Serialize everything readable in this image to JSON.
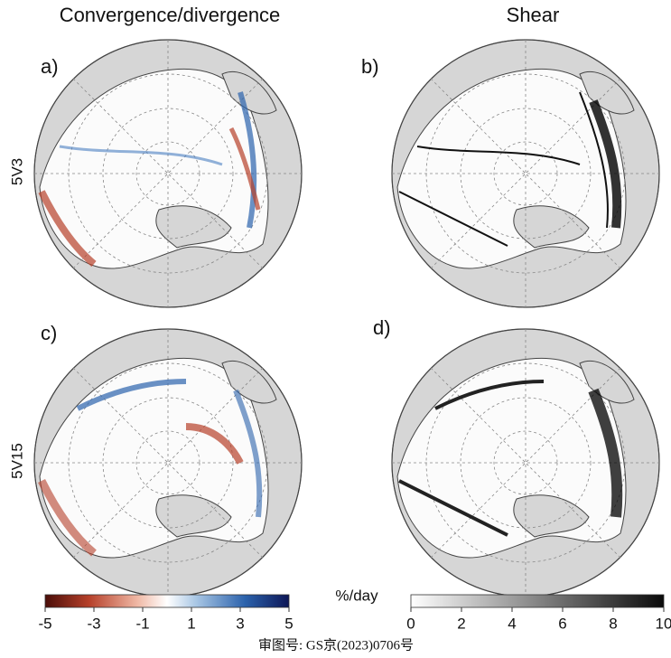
{
  "columns": [
    "Convergence/divergence",
    "Shear"
  ],
  "rows": [
    "5V3",
    "5V15"
  ],
  "panels": [
    "a)",
    "b)",
    "c)",
    "d)"
  ],
  "colorbars": [
    {
      "range": [
        -5,
        5
      ],
      "ticks": [
        -5,
        -3,
        -1,
        1,
        3,
        5
      ]
    },
    {
      "range": [
        0,
        10
      ],
      "ticks": [
        0,
        2,
        4,
        6,
        8,
        10
      ],
      "unit": "%/day"
    }
  ],
  "footer": "审图号: GS京(2023)0706号"
}
